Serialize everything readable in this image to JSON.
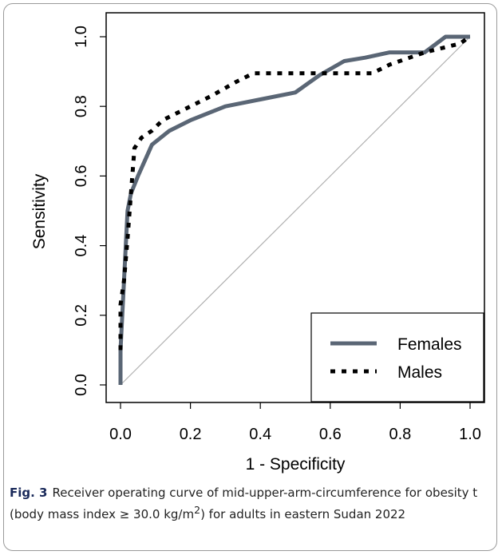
{
  "chart_data": {
    "type": "line",
    "title": "",
    "xlabel": "1 - Specificity",
    "ylabel": "Sensitivity",
    "xlim": [
      0,
      1
    ],
    "ylim": [
      0,
      1
    ],
    "x_ticks": [
      "0.0",
      "0.2",
      "0.4",
      "0.6",
      "0.8",
      "1.0"
    ],
    "y_ticks": [
      "0.0",
      "0.2",
      "0.4",
      "0.6",
      "0.8",
      "1.0"
    ],
    "grid": false,
    "reference_line": {
      "from": [
        0,
        0
      ],
      "to": [
        1,
        1
      ],
      "color": "#b0b0b0"
    },
    "legend_position": "bottom-right",
    "series": [
      {
        "name": "Females",
        "style": "solid",
        "color": "#5a6675",
        "points": [
          [
            0,
            0
          ],
          [
            0.0,
            0.1
          ],
          [
            0.01,
            0.3
          ],
          [
            0.02,
            0.5
          ],
          [
            0.03,
            0.55
          ],
          [
            0.05,
            0.6
          ],
          [
            0.09,
            0.69
          ],
          [
            0.14,
            0.73
          ],
          [
            0.2,
            0.76
          ],
          [
            0.3,
            0.8
          ],
          [
            0.4,
            0.82
          ],
          [
            0.5,
            0.84
          ],
          [
            0.57,
            0.89
          ],
          [
            0.64,
            0.93
          ],
          [
            0.7,
            0.94
          ],
          [
            0.77,
            0.955
          ],
          [
            0.87,
            0.955
          ],
          [
            0.93,
            1.0
          ],
          [
            1.0,
            1.0
          ]
        ]
      },
      {
        "name": "Males",
        "style": "dotted",
        "color": "#000000",
        "points": [
          [
            0,
            0.1
          ],
          [
            0.0,
            0.23
          ],
          [
            0.01,
            0.3
          ],
          [
            0.02,
            0.42
          ],
          [
            0.03,
            0.55
          ],
          [
            0.04,
            0.68
          ],
          [
            0.06,
            0.71
          ],
          [
            0.09,
            0.73
          ],
          [
            0.12,
            0.76
          ],
          [
            0.18,
            0.79
          ],
          [
            0.26,
            0.83
          ],
          [
            0.33,
            0.87
          ],
          [
            0.38,
            0.895
          ],
          [
            0.5,
            0.895
          ],
          [
            0.6,
            0.895
          ],
          [
            0.72,
            0.895
          ],
          [
            0.77,
            0.92
          ],
          [
            0.87,
            0.955
          ],
          [
            0.93,
            0.97
          ],
          [
            0.97,
            0.98
          ],
          [
            1.0,
            1.0
          ]
        ]
      }
    ]
  },
  "caption": {
    "label": "Fig. 3",
    "text_before": "Receiver operating curve of mid-upper-arm-circumference for obesity t (body mass index ≥ 30.0 kg/m",
    "superscript": "2",
    "text_after": ") for adults in eastern Sudan 2022"
  }
}
